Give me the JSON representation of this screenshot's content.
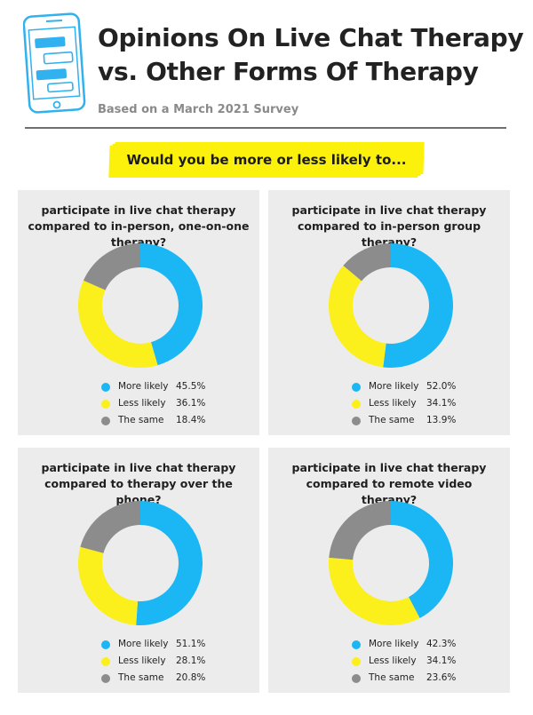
{
  "header": {
    "title_line1": "Opinions On Live Chat Therapy",
    "title_line2": "vs. Other Forms Of Therapy",
    "subtitle": "Based on a March 2021 Survey"
  },
  "question": "Would you be more or less likely to...",
  "colors": {
    "more_likely": "#1ab7f4",
    "less_likely": "#fbef1c",
    "the_same": "#8c8c8c",
    "icon_blue": "#31b1ef",
    "banner_yellow": "#fbf10a"
  },
  "legend_labels": [
    "More likely",
    "Less likely",
    "The same"
  ],
  "chart_data": [
    {
      "type": "pie",
      "title": "participate in live chat therapy compared to in-person, one-on-one therapy?",
      "categories": [
        "More likely",
        "Less likely",
        "The same"
      ],
      "values": [
        45.5,
        36.1,
        18.4
      ],
      "display": [
        "45.5%",
        "36.1%",
        "18.4%"
      ]
    },
    {
      "type": "pie",
      "title": "participate in live chat therapy compared to in-person group therapy?",
      "categories": [
        "More likely",
        "Less likely",
        "The same"
      ],
      "values": [
        52.0,
        34.1,
        13.9
      ],
      "display": [
        "52.0%",
        "34.1%",
        "13.9%"
      ]
    },
    {
      "type": "pie",
      "title": "participate in live chat therapy compared to therapy over the phone?",
      "categories": [
        "More likely",
        "Less likely",
        "The same"
      ],
      "values": [
        51.1,
        28.1,
        20.8
      ],
      "display": [
        "51.1%",
        "28.1%",
        "20.8%"
      ]
    },
    {
      "type": "pie",
      "title": "participate in live chat therapy compared to remote video therapy?",
      "categories": [
        "More likely",
        "Less likely",
        "The same"
      ],
      "values": [
        42.3,
        34.1,
        23.6
      ],
      "display": [
        "42.3%",
        "34.1%",
        "23.6%"
      ]
    }
  ]
}
